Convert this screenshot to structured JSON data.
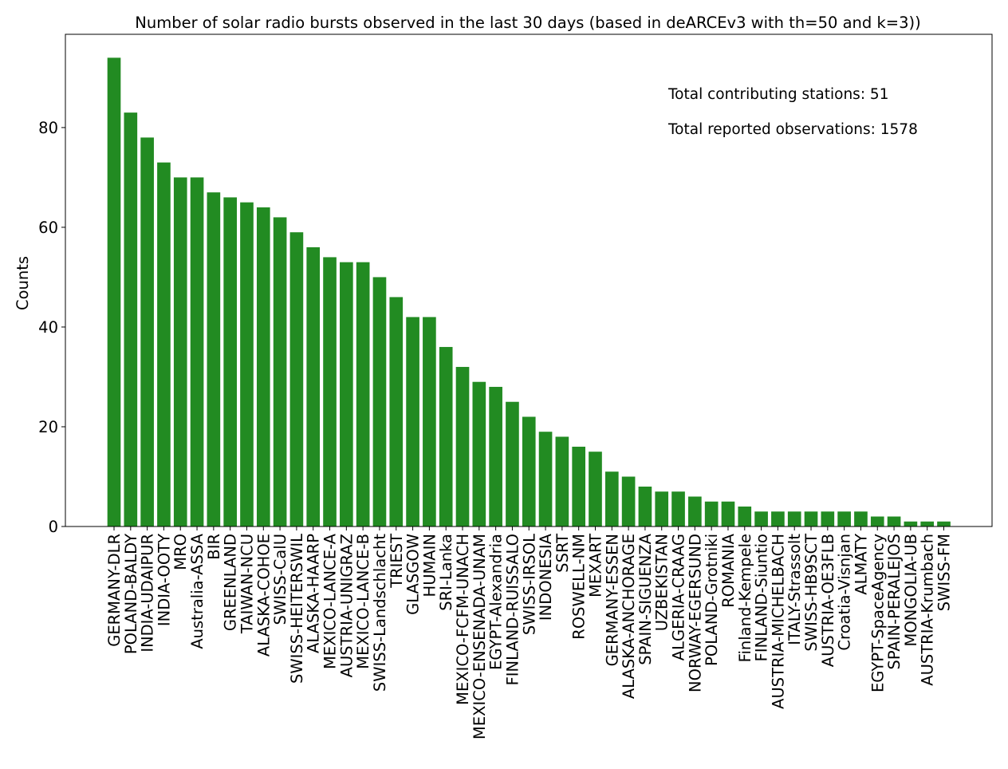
{
  "chart_data": {
    "type": "bar",
    "title": "Number of solar radio bursts observed in the last 30 days (based in deARCEv3 with th=50 and k=3))",
    "xlabel": "",
    "ylabel": "Counts",
    "ylim": [
      0,
      98.7
    ],
    "yticks": [
      0,
      20,
      40,
      60,
      80
    ],
    "grid": false,
    "legend": "none",
    "bar_color": "#228b22",
    "categories": [
      "GERMANY-DLR",
      "POLAND-BALDY",
      "INDIA-UDAIPUR",
      "INDIA-OOTY",
      "MRO",
      "Australia-ASSA",
      "BIR",
      "GREENLAND",
      "TAIWAN-NCU",
      "ALASKA-COHOE",
      "SWISS-CalU",
      "SWISS-HEITERSWIL",
      "ALASKA-HAARP",
      "MEXICO-LANCE-A",
      "AUSTRIA-UNIGRAZ",
      "MEXICO-LANCE-B",
      "SWISS-Landschlacht",
      "TRIEST",
      "GLASGOW",
      "HUMAIN",
      "SRI-Lanka",
      "MEXICO-FCFM-UNACH",
      "MEXICO-ENSENADA-UNAM",
      "EGYPT-Alexandria",
      "FINLAND-RUISSALO",
      "SWISS-IRSOL",
      "INDONESIA",
      "SSRT",
      "ROSWELL-NM",
      "MEXART",
      "GERMANY-ESSEN",
      "ALASKA-ANCHORAGE",
      "SPAIN-SIGUENZA",
      "UZBEKISTAN",
      "ALGERIA-CRAAG",
      "NORWAY-EGERSUND",
      "POLAND-Grotniki",
      "ROMANIA",
      "Finland-Kempele",
      "FINLAND-Siuntio",
      "AUSTRIA-MICHELBACH",
      "ITALY-Strassolt",
      "SWISS-HB9SCT",
      "AUSTRIA-OE3FLB",
      "Croatia-Visnjan",
      "ALMATY",
      "EGYPT-SpaceAgency",
      "SPAIN-PERALEJOS",
      "MONGOLIA-UB",
      "AUSTRIA-Krumbach",
      "SWISS-FM"
    ],
    "values": [
      94,
      83,
      78,
      73,
      70,
      70,
      67,
      66,
      65,
      64,
      62,
      59,
      56,
      54,
      53,
      53,
      50,
      46,
      42,
      42,
      36,
      32,
      29,
      28,
      25,
      22,
      19,
      18,
      16,
      15,
      11,
      10,
      8,
      7,
      7,
      6,
      5,
      5,
      4,
      3,
      3,
      3,
      3,
      3,
      3,
      3,
      2,
      2,
      1,
      1,
      1
    ],
    "annotations": [
      "Total contributing stations: 51",
      "Total reported observations: 1578"
    ]
  }
}
